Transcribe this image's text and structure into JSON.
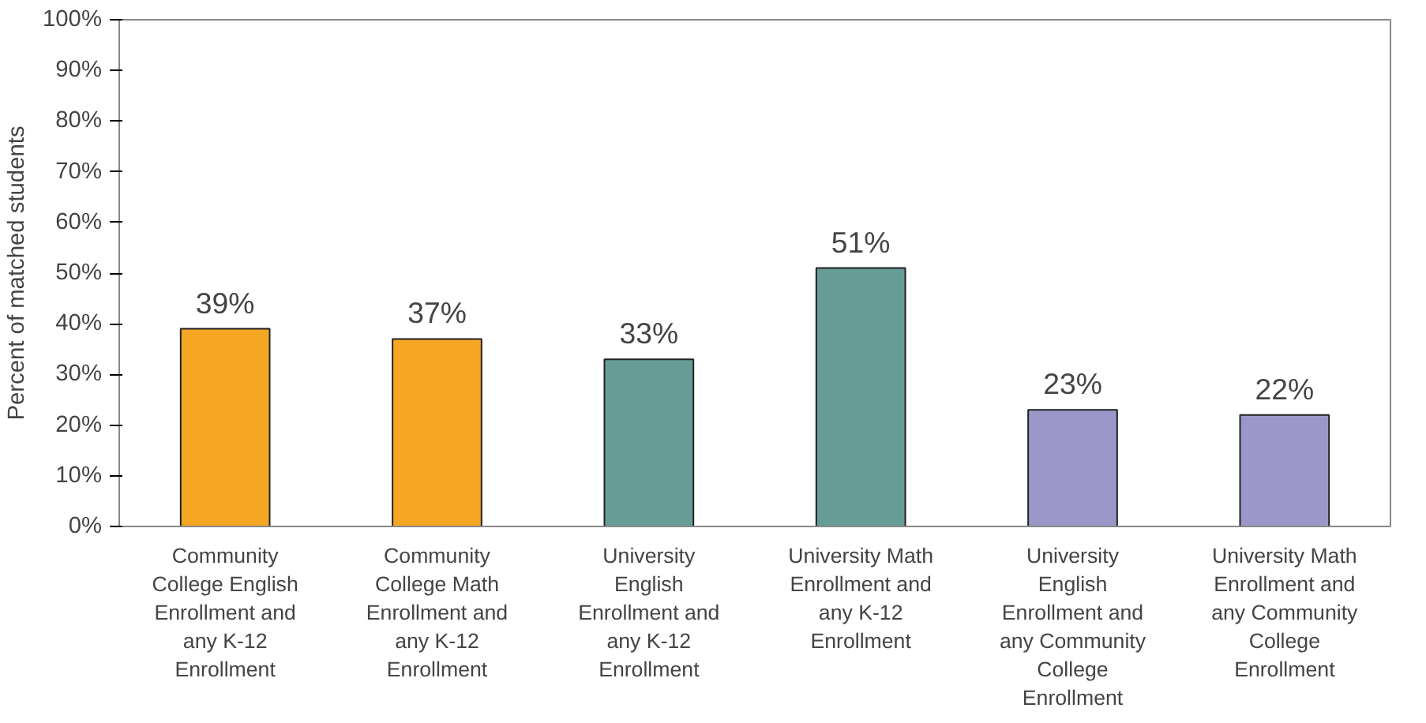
{
  "chart_data": {
    "type": "bar",
    "ylabel": "Percent of matched students",
    "categories": [
      "Community College English Enrollment and any K-12 Enrollment",
      "Community College Math Enrollment and any K-12 Enrollment",
      "University English Enrollment and any K-12 Enrollment",
      "University Math Enrollment and any K-12 Enrollment",
      "University English Enrollment and any Community College Enrollment",
      "University Math Enrollment and any Community College Enrollment"
    ],
    "values": [
      39,
      37,
      33,
      51,
      23,
      22
    ],
    "colors": [
      "#f5a623",
      "#f5a623",
      "#669c96",
      "#669c96",
      "#9b97c9",
      "#9b97c9"
    ],
    "ylim": [
      0,
      100
    ],
    "yticks": [
      {
        "value": 0,
        "label": "0%"
      },
      {
        "value": 10,
        "label": "10%"
      },
      {
        "value": 20,
        "label": "20%"
      },
      {
        "value": 30,
        "label": "30%"
      },
      {
        "value": 40,
        "label": "40%"
      },
      {
        "value": 50,
        "label": "50%"
      },
      {
        "value": 60,
        "label": "60%"
      },
      {
        "value": 70,
        "label": "70%"
      },
      {
        "value": 80,
        "label": "80%"
      },
      {
        "value": 90,
        "label": "90%"
      },
      {
        "value": 100,
        "label": "100%"
      }
    ],
    "value_labels": [
      "39%",
      "37%",
      "33%",
      "51%",
      "23%",
      "22%"
    ],
    "grid": false
  }
}
